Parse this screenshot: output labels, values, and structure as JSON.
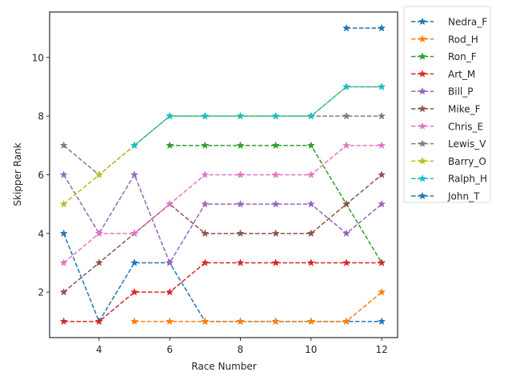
{
  "chart_data": {
    "type": "line",
    "title": "",
    "xlabel": "Race Number",
    "ylabel": "Skipper Rank",
    "xlim": [
      2.6,
      12.45
    ],
    "ylim": [
      0.45,
      11.55
    ],
    "xticks": [
      4,
      6,
      8,
      10,
      12
    ],
    "yticks": [
      2,
      4,
      6,
      8,
      10
    ],
    "grid": false,
    "legend_position": "outside upper right",
    "line_style": "dashed",
    "marker": "star",
    "x": [
      3,
      4,
      5,
      6,
      7,
      8,
      9,
      10,
      11,
      12
    ],
    "series": [
      {
        "name": "Nedra_F",
        "color": "#1f77b4",
        "values": [
          4,
          1,
          3,
          3,
          1,
          1,
          1,
          1,
          1,
          1
        ]
      },
      {
        "name": "Rod_H",
        "color": "#ff7f0e",
        "values": [
          null,
          null,
          1,
          1,
          1,
          1,
          1,
          1,
          1,
          2
        ]
      },
      {
        "name": "Ron_F",
        "color": "#2ca02c",
        "values": [
          null,
          null,
          null,
          7,
          7,
          7,
          7,
          7,
          5,
          3
        ]
      },
      {
        "name": "Art_M",
        "color": "#d62728",
        "values": [
          1,
          1,
          2,
          2,
          3,
          3,
          3,
          3,
          3,
          3
        ]
      },
      {
        "name": "Bill_P",
        "color": "#9467bd",
        "values": [
          6,
          4,
          6,
          3,
          5,
          5,
          5,
          5,
          4,
          5
        ]
      },
      {
        "name": "Mike_F",
        "color": "#8c564b",
        "values": [
          2,
          3,
          4,
          5,
          4,
          4,
          4,
          4,
          5,
          6
        ]
      },
      {
        "name": "Chris_E",
        "color": "#e377c2",
        "values": [
          3,
          4,
          4,
          5,
          6,
          6,
          6,
          6,
          7,
          7
        ]
      },
      {
        "name": "Lewis_V",
        "color": "#7f7f7f",
        "values": [
          7,
          6,
          7,
          8,
          8,
          8,
          8,
          8,
          8,
          8
        ]
      },
      {
        "name": "Barry_O",
        "color": "#bcbd22",
        "values": [
          5,
          6,
          7,
          8,
          8,
          8,
          8,
          8,
          9,
          9
        ]
      },
      {
        "name": "Ralph_H",
        "color": "#17becf",
        "values": [
          null,
          null,
          7,
          8,
          8,
          8,
          8,
          8,
          9,
          9
        ]
      },
      {
        "name": "John_T",
        "color": "#1f77b4",
        "values": [
          null,
          null,
          null,
          null,
          null,
          null,
          null,
          null,
          11,
          11
        ]
      }
    ]
  }
}
